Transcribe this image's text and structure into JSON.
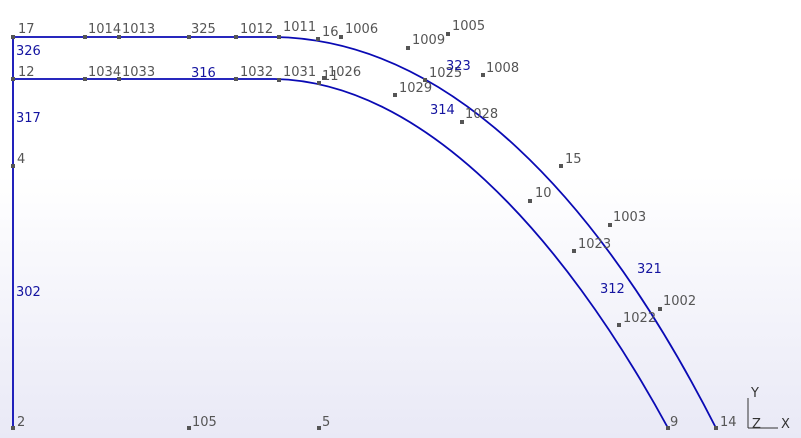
{
  "colors": {
    "curve": "#0a0ab4",
    "point": "#555555",
    "point_label": "#555555",
    "curve_label": "#1414a0"
  },
  "points": [
    {
      "id": "17"
    },
    {
      "id": "1014"
    },
    {
      "id": "1013"
    },
    {
      "id": "325"
    },
    {
      "id": "1012"
    },
    {
      "id": "1011"
    },
    {
      "id": "16"
    },
    {
      "id": "1006"
    },
    {
      "id": "1009"
    },
    {
      "id": "1005"
    },
    {
      "id": "12"
    },
    {
      "id": "1034"
    },
    {
      "id": "1033"
    },
    {
      "id": "1032"
    },
    {
      "id": "1031"
    },
    {
      "id": "1026"
    },
    {
      "id": "11"
    },
    {
      "id": "1025"
    },
    {
      "id": "1029"
    },
    {
      "id": "1008"
    },
    {
      "id": "1028"
    },
    {
      "id": "4"
    },
    {
      "id": "15"
    },
    {
      "id": "10"
    },
    {
      "id": "1003"
    },
    {
      "id": "1023"
    },
    {
      "id": "1002"
    },
    {
      "id": "1022"
    },
    {
      "id": "2"
    },
    {
      "id": "105"
    },
    {
      "id": "5"
    },
    {
      "id": "9"
    },
    {
      "id": "14"
    }
  ],
  "curve_labels": [
    {
      "id": "326"
    },
    {
      "id": "317"
    },
    {
      "id": "302"
    },
    {
      "id": "316"
    },
    {
      "id": "323"
    },
    {
      "id": "314"
    },
    {
      "id": "321"
    },
    {
      "id": "312"
    }
  ],
  "axes": {
    "y": "Y",
    "z": "Z",
    "x": "X"
  }
}
